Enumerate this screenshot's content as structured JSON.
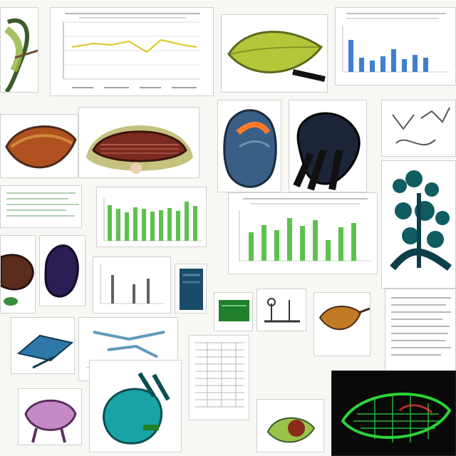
{
  "collage": {
    "tiles": [
      "beetle-drawing",
      "yellow-line-chart",
      "green-leaf-specimen",
      "blue-bar-chart",
      "rust-fin-specimen",
      "orange-organ-specimen",
      "red-brown-organ-cross-section",
      "blue-brain-specimen",
      "dark-anatomy-specimen",
      "sketch-tile",
      "teal-tree-specimen",
      "text-panel",
      "green-bar-chart-left",
      "green-bar-chart-right",
      "brown-specimen",
      "purple-seed-specimen",
      "gray-bar-chart",
      "blue-tissue-specimen",
      "green-gel-panel",
      "lab-apparatus-panel",
      "orange-bird-specimen",
      "document-panel",
      "blue-wing-specimen",
      "wireframe-panel",
      "teal-creature-specimen",
      "pink-specimen",
      "table-panels",
      "green-red-seed-specimen",
      "green-mesh-dark-specimen"
    ]
  },
  "colors": {
    "line": "#e0c31f",
    "blue_bar": "#3f7fd1",
    "green_bar": "#5cc24d",
    "dark_bg": "#090909"
  }
}
